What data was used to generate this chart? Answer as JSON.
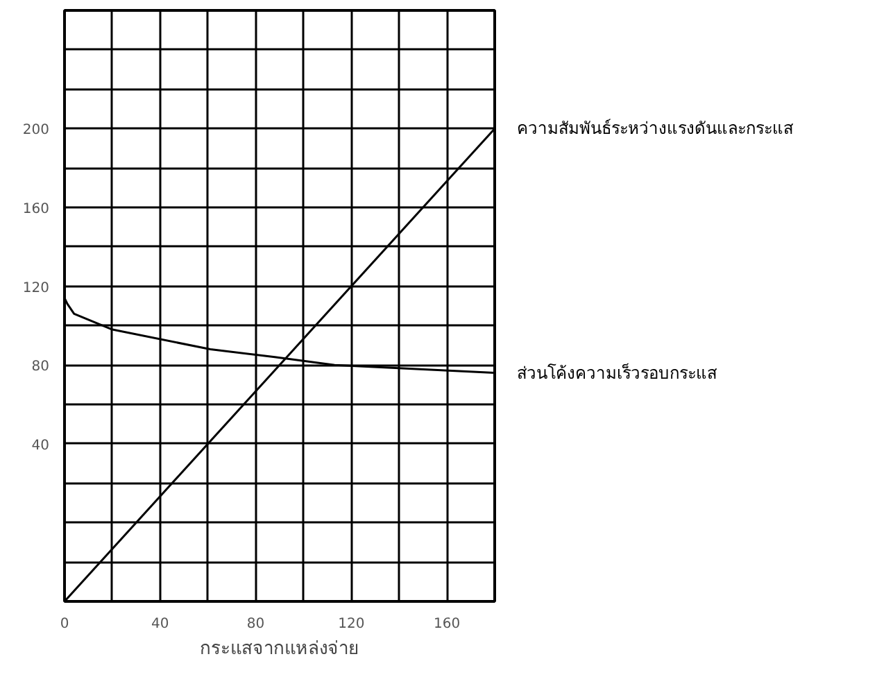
{
  "chart_data": {
    "type": "line",
    "xlabel": "กระแสจากแหล่งจ่าย",
    "xlim": [
      0,
      180
    ],
    "ylim": [
      -40,
      260
    ],
    "xticks": [
      0,
      {
        "value": 20,
        "label": null
      },
      40,
      {
        "value": 60,
        "label": null
      },
      80,
      {
        "value": 100,
        "label": null
      },
      120,
      {
        "value": 140,
        "label": null
      },
      160
    ],
    "yticks": [
      {
        "value": -20,
        "label": null
      },
      {
        "value": 0,
        "label": null
      },
      {
        "value": 20,
        "label": null
      },
      40,
      {
        "value": 60,
        "label": null
      },
      80,
      {
        "value": 100,
        "label": null
      },
      120,
      {
        "value": 140,
        "label": null
      },
      160,
      {
        "value": 180,
        "label": null
      },
      200,
      {
        "value": 220,
        "label": null
      },
      {
        "value": 240,
        "label": null
      }
    ],
    "grid": true,
    "marker": "none",
    "line_style": "solid",
    "series": [
      {
        "name": "ความสัมพันธ์ระหว่างแรงดันและกระแส",
        "color": "#000000",
        "x": [
          0,
          180
        ],
        "values": [
          -40,
          200
        ]
      },
      {
        "name": "ส่วนโค้งความเร็วรอบกระแส",
        "color": "#000000",
        "x": [
          0,
          1.2,
          4,
          20,
          61,
          88,
          113,
          180
        ],
        "values": [
          114,
          111,
          106,
          98,
          88,
          84,
          80,
          76
        ]
      }
    ]
  }
}
